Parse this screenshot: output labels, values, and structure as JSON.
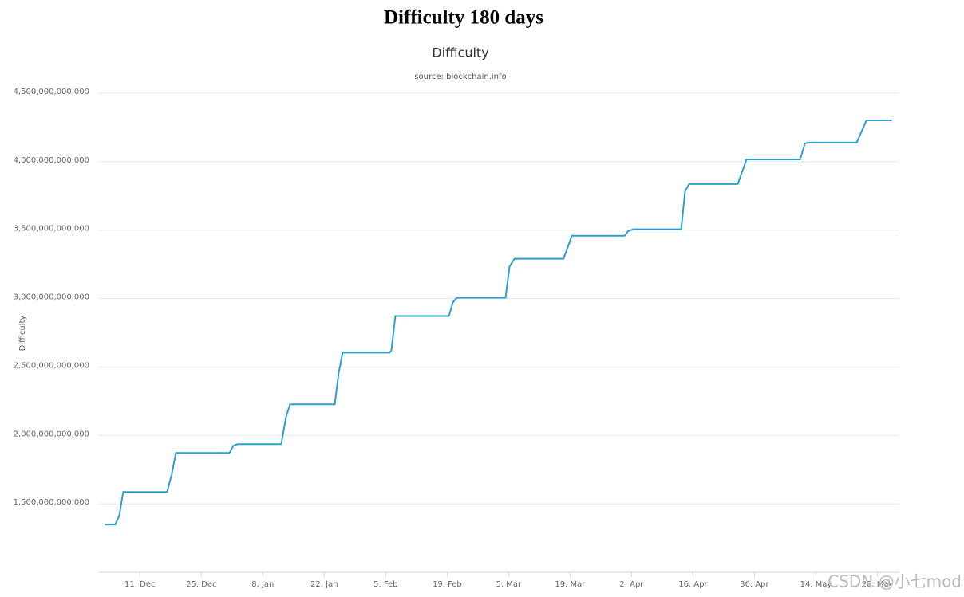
{
  "header": {
    "title": "Difficulty 180 days"
  },
  "chart_data": {
    "type": "line",
    "title": "Difficulty",
    "subtitle": "source: blockchain.info",
    "y_label": "Difficulty",
    "watermark": "CSDN @小七mod",
    "xlim": [
      -9.5,
      173
    ],
    "xticks": [
      {
        "value": 0,
        "label": "11. Dec"
      },
      {
        "value": 14,
        "label": "25. Dec"
      },
      {
        "value": 28,
        "label": "8. Jan"
      },
      {
        "value": 42,
        "label": "22. Jan"
      },
      {
        "value": 56,
        "label": "5. Feb"
      },
      {
        "value": 70,
        "label": "19. Feb"
      },
      {
        "value": 84,
        "label": "5. Mar"
      },
      {
        "value": 98,
        "label": "19. Mar"
      },
      {
        "value": 112,
        "label": "2. Apr"
      },
      {
        "value": 126,
        "label": "16. Apr"
      },
      {
        "value": 140,
        "label": "30. Apr"
      },
      {
        "value": 154,
        "label": "14. May"
      },
      {
        "value": 168,
        "label": "28. May"
      }
    ],
    "ylim": [
      1000000000000,
      4500000000000
    ],
    "yticks": [
      {
        "value": 1500000000000,
        "label": "1,500,000,000,000"
      },
      {
        "value": 2000000000000,
        "label": "2,000,000,000,000"
      },
      {
        "value": 2500000000000,
        "label": "2,500,000,000,000"
      },
      {
        "value": 3000000000000,
        "label": "3,000,000,000,000"
      },
      {
        "value": 3500000000000,
        "label": "3,500,000,000,000"
      },
      {
        "value": 4000000000000,
        "label": "4,000,000,000,000"
      },
      {
        "value": 4500000000000,
        "label": "4,500,000,000,000"
      }
    ],
    "grid": true,
    "x": [
      -8.0,
      -5.6,
      -4.7,
      -3.8,
      6.2,
      7.3,
      8.2,
      20.4,
      21.3,
      22.2,
      32.2,
      33.3,
      34.2,
      44.4,
      45.3,
      46.2,
      56.9,
      57.3,
      58.2,
      70.4,
      71.3,
      72.2,
      83.3,
      84.2,
      85.3,
      96.5,
      97.5,
      98.4,
      110.4,
      111.3,
      112.4,
      123.3,
      124.2,
      125.1,
      136.2,
      137.3,
      138.2,
      150.4,
      151.5,
      152.5,
      163.3,
      164.4,
      165.5,
      171.3
    ],
    "series": [
      {
        "name": "Difficulty",
        "color": "#2b9fd0",
        "values": [
          1349000000000,
          1349000000000,
          1413000000000,
          1587000000000,
          1587000000000,
          1721000000000,
          1872000000000,
          1872000000000,
          1924000000000,
          1936000000000,
          1936000000000,
          2134000000000,
          2227000000000,
          2227000000000,
          2459000000000,
          2605000000000,
          2605000000000,
          2622000000000,
          2872000000000,
          2872000000000,
          2971000000000,
          3006000000000,
          3006000000000,
          3233000000000,
          3291000000000,
          3291000000000,
          3378000000000,
          3459000000000,
          3459000000000,
          3494000000000,
          3506000000000,
          3506000000000,
          3785000000000,
          3837000000000,
          3837000000000,
          3936000000000,
          4017000000000,
          4017000000000,
          4134000000000,
          4140000000000,
          4140000000000,
          4221000000000,
          4302000000000,
          4302000000000
        ]
      }
    ]
  }
}
